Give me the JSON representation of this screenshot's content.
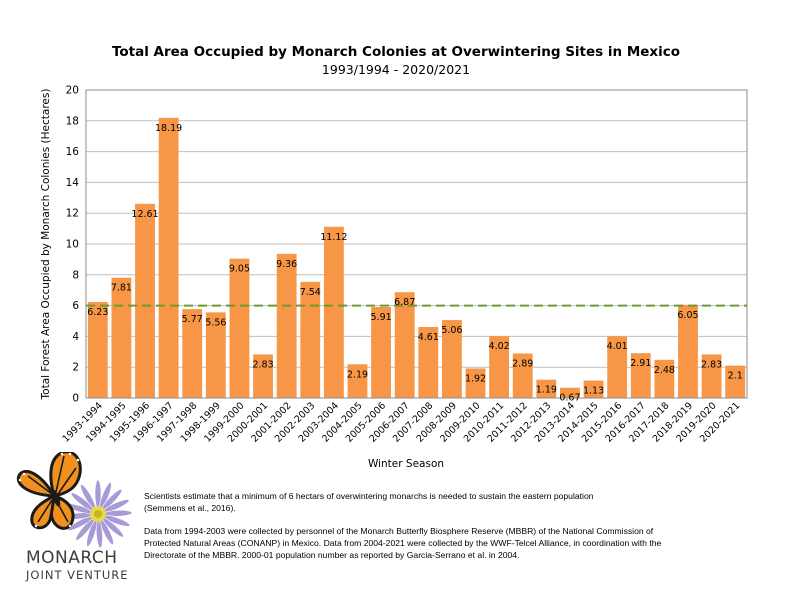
{
  "chart_data": {
    "type": "bar",
    "title": "Total Area Occupied by Monarch Colonies at Overwintering Sites in Mexico",
    "subtitle": "1993/1994 - 2020/2021",
    "xlabel": "Winter Season",
    "ylabel": "Total Forest Area Occupied by Monarch Colonies (Hectares)",
    "ylim": [
      0,
      20
    ],
    "yticks": [
      "0",
      "2",
      "4",
      "6",
      "8",
      "10",
      "12",
      "14",
      "16",
      "18",
      "20"
    ],
    "grid": true,
    "bar_color": "#F79646",
    "threshold_line": {
      "value": 6,
      "color": "#6E9B2E",
      "style": "dashed"
    },
    "categories": [
      "1993-1994",
      "1994-1995",
      "1995-1996",
      "1996-1997",
      "1997-1998",
      "1998-1999",
      "1999-2000",
      "2000-2001",
      "2001-2002",
      "2002-2003",
      "2003-2004",
      "2004-2005",
      "2005-2006",
      "2006-2007",
      "2007-2008",
      "2008-2009",
      "2009-2010",
      "2010-2011",
      "2011-2012",
      "2012-2013",
      "2013-2014",
      "2014-2015",
      "2015-2016",
      "2016-2017",
      "2017-2018",
      "2018-2019",
      "2019-2020",
      "2020-2021"
    ],
    "values": [
      6.23,
      7.81,
      12.61,
      18.19,
      5.77,
      5.56,
      9.05,
      2.83,
      9.36,
      7.54,
      11.12,
      2.19,
      5.91,
      6.87,
      4.61,
      5.06,
      1.92,
      4.02,
      2.89,
      1.19,
      0.67,
      1.13,
      4.01,
      2.91,
      2.48,
      6.05,
      2.83,
      2.1
    ],
    "data_labels": [
      "6.23",
      "7.81",
      "12.61",
      "18.19",
      "5.77",
      "5.56",
      "9.05",
      "2.83",
      "9.36",
      "7.54",
      "11.12",
      "2.19",
      "5.91",
      "6.87",
      "4.61",
      "5.06",
      "1.92",
      "4.02",
      "2.89",
      "1.19",
      "0.67",
      "1.13",
      "4.01",
      "2.91",
      "2.48",
      "6.05",
      "2.83",
      "2.1"
    ]
  },
  "notes": {
    "line1": "Scientists estimate that a minimum of 6 hectars of overwintering monarchs is needed to sustain the eastern population",
    "line2": "(Semmens et al., 2016).",
    "line3": "Data from 1994-2003 were collected by personnel of the Monarch Butterfly Biosphere Reserve (MBBR) of the National Commission of",
    "line4": "Protected Natural Areas (CONANP) in Mexico. Data from 2004-2021 were collected by the WWF-Telcel Alliance, in coordination with the",
    "line5": "Directorate of the MBBR. 2000-01 population number as reported by Garcia-Serrano et al. in 2004."
  },
  "logo": {
    "line1": "MONARCH",
    "line2": "JOINT VENTURE",
    "icon": "monarch-butterfly-on-aster-icon"
  }
}
